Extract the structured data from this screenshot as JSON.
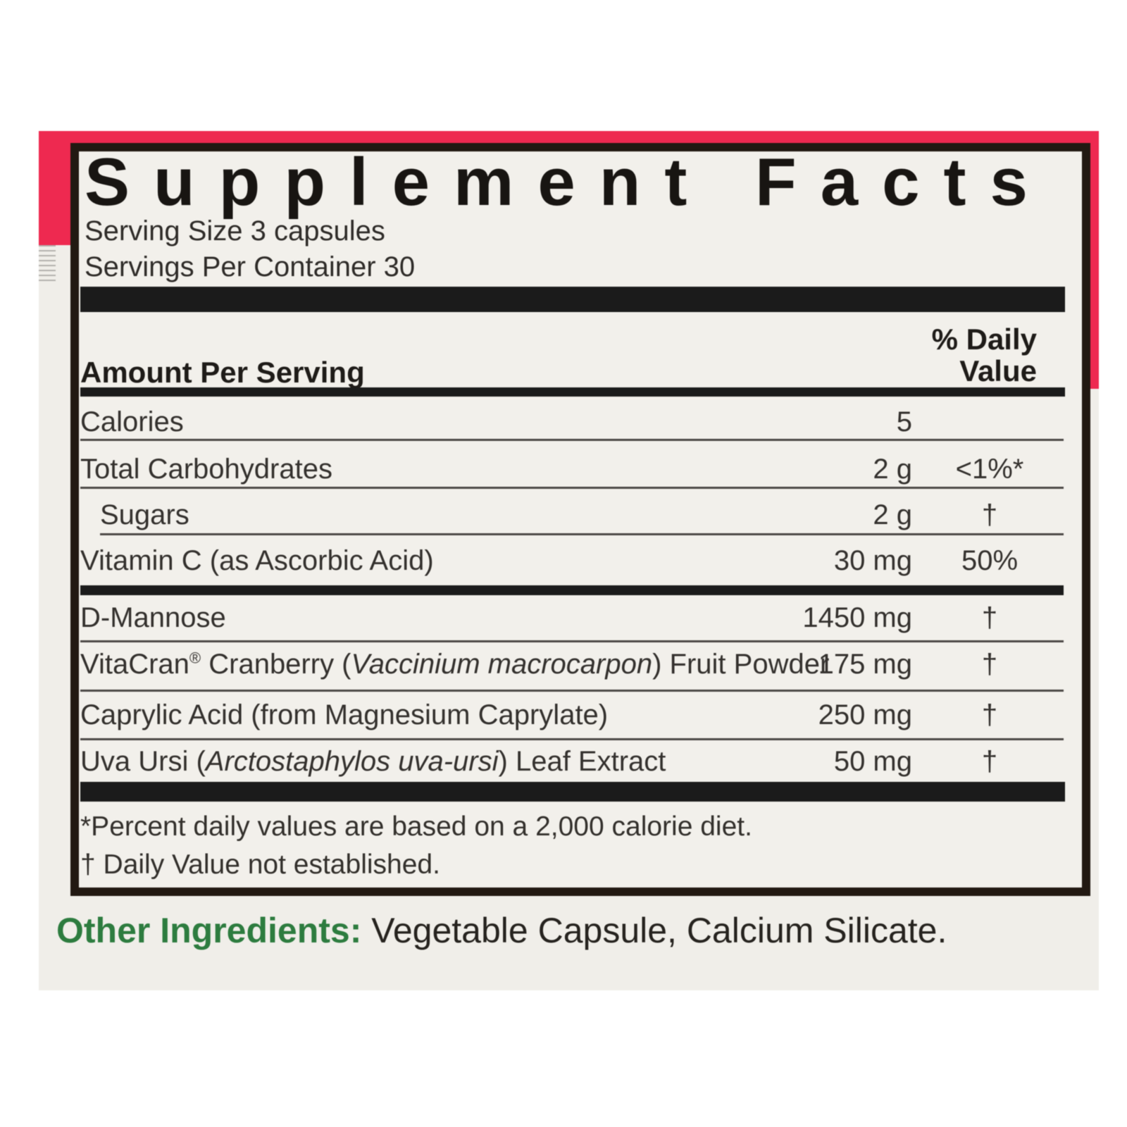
{
  "supplement_facts": {
    "title": "Supplement Facts",
    "serving_size": "Serving Size 3 capsules",
    "servings_per_container": "Servings Per Container 30",
    "amount_header": "Amount Per Serving",
    "daily_value_header_line1": "% Daily",
    "daily_value_header_line2": "Value",
    "rows": [
      {
        "name_parts": [
          {
            "t": "Calories"
          }
        ],
        "amount": "5",
        "daily_value": ""
      },
      {
        "name_parts": [
          {
            "t": "Total Carbohydrates"
          }
        ],
        "amount": "2 g",
        "daily_value": "<1%*"
      },
      {
        "name_parts": [
          {
            "t": "Sugars"
          }
        ],
        "amount": "2 g",
        "daily_value": "†",
        "indent": true
      },
      {
        "name_parts": [
          {
            "t": "Vitamin C (as Ascorbic Acid)"
          }
        ],
        "amount": "30 mg",
        "daily_value": "50%"
      },
      {
        "name_parts": [
          {
            "t": "D-Mannose"
          }
        ],
        "amount": "1450 mg",
        "daily_value": "†"
      },
      {
        "name_parts": [
          {
            "t": "VitaCran"
          },
          {
            "t": "®",
            "sup": true
          },
          {
            "t": " Cranberry ("
          },
          {
            "t": "Vaccinium macrocarpon",
            "i": true
          },
          {
            "t": ") Fruit Powder"
          }
        ],
        "amount": "175 mg",
        "daily_value": "†"
      },
      {
        "name_parts": [
          {
            "t": "Caprylic Acid (from Magnesium Caprylate)"
          }
        ],
        "amount": "250 mg",
        "daily_value": "†"
      },
      {
        "name_parts": [
          {
            "t": "Uva Ursi ("
          },
          {
            "t": "Arctostaphylos uva-ursi",
            "i": true
          },
          {
            "t": ") Leaf Extract"
          }
        ],
        "amount": "50 mg",
        "daily_value": "†"
      }
    ],
    "footnote_line1": "*Percent daily values are based on a 2,000 calorie diet.",
    "footnote_line2": "† Daily Value not established."
  },
  "other_ingredients": {
    "label": "Other Ingredients:",
    "text": " Vegetable Capsule, Calcium Silicate."
  },
  "colors": {
    "pink": "#ee2950",
    "green": "#2d7c3f",
    "label_background": "#f2f0eb",
    "photo_background": "#f0eee9",
    "bar_black": "#1b1b1b"
  }
}
